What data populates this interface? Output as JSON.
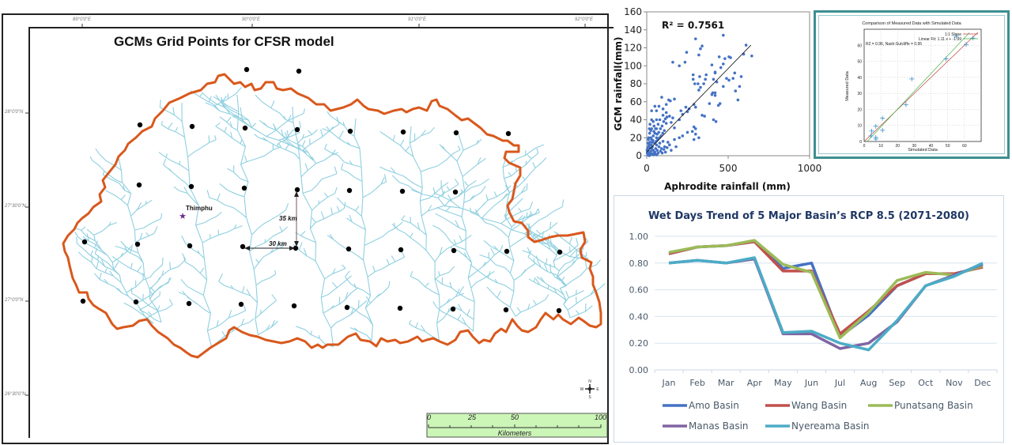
{
  "map": {
    "title": "GCMs Grid Points for  CFSR model",
    "lon_ticks": [
      "89°0'0\"E",
      "90°0'0\"E",
      "91°0'0\"E",
      "92°0'0\"E"
    ],
    "lat_ticks": [
      "28°0'0\"N",
      "27°30'0\"N",
      "27°0'0\"N",
      "26°30'0\"N"
    ],
    "city_label": "Thimphu",
    "distance_vertical": "35 km",
    "distance_horizontal": "30 km",
    "scalebar": {
      "ticks": [
        "0",
        "25",
        "50",
        "100"
      ],
      "unit": "Kilometers"
    },
    "compass": {
      "n": "N",
      "s": "S",
      "e": "E",
      "w": "W"
    },
    "colors": {
      "boundary": "#d9581c",
      "rivers": "#8fd0e0",
      "points": "#000000",
      "city": "#6a2a8a",
      "scalebar_bg": "#ccf5b8"
    }
  },
  "chart_data": [
    {
      "type": "scatter",
      "title": "",
      "annotation": "R² = 0.7561",
      "xlabel": "Aphrodite rainfall (mm)",
      "ylabel": "GCM rainfall(mm)",
      "xlim": [
        0,
        1000
      ],
      "ylim": [
        0,
        160
      ],
      "x_ticks": [
        "0",
        "500",
        "1000"
      ],
      "y_ticks": [
        "0",
        "20",
        "40",
        "60",
        "80",
        "100",
        "120",
        "140",
        "160"
      ],
      "trendline": {
        "slope": 0.186,
        "intercept": 4,
        "x_range": [
          0,
          640
        ]
      },
      "color": "#4472c4",
      "points": [
        [
          470,
          134
        ],
        [
          300,
          130
        ],
        [
          610,
          123
        ],
        [
          340,
          122
        ],
        [
          330,
          119
        ],
        [
          245,
          115
        ],
        [
          320,
          112
        ],
        [
          645,
          111
        ],
        [
          445,
          110
        ],
        [
          505,
          110
        ],
        [
          515,
          109
        ],
        [
          480,
          108
        ],
        [
          160,
          104
        ],
        [
          235,
          104
        ],
        [
          595,
          113
        ],
        [
          400,
          101
        ],
        [
          470,
          102
        ],
        [
          200,
          100
        ],
        [
          455,
          98
        ],
        [
          420,
          93
        ],
        [
          540,
          92
        ],
        [
          420,
          92
        ],
        [
          365,
          90
        ],
        [
          285,
          90
        ],
        [
          285,
          85
        ],
        [
          325,
          88
        ],
        [
          490,
          86
        ],
        [
          580,
          88
        ],
        [
          410,
          85
        ],
        [
          505,
          84
        ],
        [
          530,
          86
        ],
        [
          350,
          80
        ],
        [
          360,
          85
        ],
        [
          430,
          82
        ],
        [
          315,
          80
        ],
        [
          295,
          80
        ],
        [
          570,
          77
        ],
        [
          470,
          77
        ],
        [
          330,
          76
        ],
        [
          545,
          72
        ],
        [
          320,
          73
        ],
        [
          405,
          70
        ],
        [
          420,
          70
        ],
        [
          400,
          68
        ],
        [
          420,
          67
        ],
        [
          560,
          62
        ],
        [
          92,
          65
        ],
        [
          135,
          62
        ],
        [
          145,
          61
        ],
        [
          170,
          63
        ],
        [
          120,
          57
        ],
        [
          290,
          57
        ],
        [
          450,
          58
        ],
        [
          440,
          56
        ],
        [
          300,
          54
        ],
        [
          385,
          58
        ],
        [
          50,
          55
        ],
        [
          75,
          55
        ],
        [
          240,
          54
        ],
        [
          260,
          52
        ],
        [
          100,
          52
        ],
        [
          120,
          48
        ],
        [
          210,
          50
        ],
        [
          250,
          49
        ],
        [
          30,
          50
        ],
        [
          60,
          50
        ],
        [
          340,
          45
        ],
        [
          355,
          44
        ],
        [
          410,
          40
        ],
        [
          425,
          38
        ],
        [
          100,
          45
        ],
        [
          140,
          44
        ],
        [
          160,
          42
        ],
        [
          200,
          40
        ],
        [
          220,
          46
        ],
        [
          60,
          40
        ],
        [
          80,
          40
        ],
        [
          40,
          38
        ],
        [
          20,
          35
        ],
        [
          45,
          33
        ],
        [
          70,
          35
        ],
        [
          120,
          36
        ],
        [
          150,
          37
        ],
        [
          170,
          31
        ],
        [
          30,
          30
        ],
        [
          60,
          30
        ],
        [
          290,
          32
        ],
        [
          300,
          30
        ],
        [
          250,
          26
        ],
        [
          280,
          27
        ],
        [
          300,
          24
        ],
        [
          320,
          20
        ],
        [
          290,
          18
        ],
        [
          200,
          20
        ],
        [
          220,
          22
        ],
        [
          170,
          18
        ],
        [
          130,
          15
        ],
        [
          140,
          12
        ],
        [
          110,
          10
        ],
        [
          90,
          8
        ],
        [
          80,
          14
        ],
        [
          100,
          16
        ],
        [
          60,
          20
        ],
        [
          50,
          25
        ],
        [
          40,
          22
        ],
        [
          30,
          18
        ],
        [
          20,
          15
        ],
        [
          15,
          12
        ],
        [
          10,
          10
        ],
        [
          5,
          8
        ],
        [
          8,
          5
        ],
        [
          12,
          3
        ],
        [
          20,
          2
        ],
        [
          25,
          5
        ],
        [
          30,
          8
        ],
        [
          35,
          10
        ],
        [
          40,
          6
        ],
        [
          45,
          3
        ],
        [
          50,
          4
        ],
        [
          55,
          8
        ],
        [
          60,
          12
        ],
        [
          65,
          6
        ],
        [
          70,
          3
        ],
        [
          75,
          10
        ],
        [
          85,
          5
        ],
        [
          95,
          3
        ],
        [
          105,
          7
        ],
        [
          115,
          4
        ],
        [
          125,
          9
        ],
        [
          150,
          6
        ],
        [
          180,
          10
        ],
        [
          12,
          20
        ],
        [
          18,
          25
        ],
        [
          25,
          28
        ],
        [
          35,
          15
        ],
        [
          8,
          14
        ],
        [
          3,
          3
        ],
        [
          6,
          1
        ],
        [
          15,
          0
        ],
        [
          22,
          1
        ],
        [
          32,
          2
        ],
        [
          42,
          1
        ],
        [
          52,
          2
        ],
        [
          62,
          1
        ],
        [
          2,
          6
        ],
        [
          10,
          18
        ],
        [
          28,
          12
        ],
        [
          38,
          17
        ],
        [
          48,
          14
        ],
        [
          58,
          16
        ],
        [
          68,
          18
        ],
        [
          78,
          20
        ],
        [
          88,
          22
        ],
        [
          98,
          25
        ],
        [
          108,
          28
        ],
        [
          18,
          9
        ],
        [
          26,
          20
        ],
        [
          44,
          27
        ],
        [
          54,
          30
        ],
        [
          64,
          24
        ],
        [
          74,
          26
        ],
        [
          84,
          30
        ],
        [
          94,
          33
        ],
        [
          104,
          38
        ],
        [
          114,
          41
        ],
        [
          124,
          43
        ],
        [
          30,
          40
        ],
        [
          16,
          30
        ]
      ]
    },
    {
      "type": "scatter",
      "title": "Comparison of Measured Data with Simulated Data",
      "xlabel": "Simulated Data",
      "ylabel": "Measured Data",
      "xlim": [
        0,
        70
      ],
      "ylim": [
        0,
        70
      ],
      "x_ticks": [
        "0",
        "10",
        "20",
        "30",
        "40",
        "50",
        "60"
      ],
      "y_ticks": [
        "0",
        "10",
        "20",
        "30",
        "40",
        "50",
        "60"
      ],
      "grid": true,
      "legend": [
        "1:1 Slope",
        "Linear Fit: 1.11 x + -1.99"
      ],
      "annotation": "R2 = 0.96,   Nash-Sutcliffe = 0.95",
      "legend_position": "top-right",
      "series_colors": {
        "points": "#3a8fcc",
        "one_to_one": "#c04040",
        "fit": "#40b040"
      },
      "points": [
        [
          55,
          65.5
        ],
        [
          65,
          64.5
        ],
        [
          61,
          60.5
        ],
        [
          49,
          51.5
        ],
        [
          28.5,
          39
        ],
        [
          25,
          23
        ],
        [
          11,
          14.5
        ],
        [
          7,
          9.5
        ],
        [
          4.5,
          6.5
        ],
        [
          11,
          7
        ],
        [
          4,
          3.5
        ],
        [
          7,
          2.5
        ],
        [
          7,
          1.5
        ]
      ]
    },
    {
      "type": "line",
      "title": "Wet Days Trend of 5 Major Basin’s RCP 8.5 (2071-2080)",
      "xlabel": "",
      "ylabel": "",
      "ylim": [
        0,
        1.0
      ],
      "y_ticks": [
        "0.00",
        "0.20",
        "0.40",
        "0.60",
        "0.80",
        "1.00"
      ],
      "categories": [
        "Jan",
        "Feb",
        "Mar",
        "Apr",
        "May",
        "Jun",
        "Jul",
        "Aug",
        "Sep",
        "Oct",
        "Nov",
        "Dec"
      ],
      "grid": true,
      "legend_position": "bottom",
      "series": [
        {
          "name": "Amo Basin",
          "color": "#4472c4",
          "values": [
            0.87,
            0.92,
            0.93,
            0.96,
            0.76,
            0.8,
            0.25,
            0.41,
            0.63,
            0.72,
            0.72,
            0.77
          ]
        },
        {
          "name": "Wang Basin",
          "color": "#c0504d",
          "values": [
            0.87,
            0.92,
            0.93,
            0.96,
            0.74,
            0.74,
            0.27,
            0.44,
            0.63,
            0.72,
            0.72,
            0.77
          ]
        },
        {
          "name": "Punatsang Basin",
          "color": "#9bbb59",
          "values": [
            0.88,
            0.92,
            0.93,
            0.97,
            0.79,
            0.73,
            0.24,
            0.43,
            0.67,
            0.73,
            0.71,
            0.78
          ]
        },
        {
          "name": "Manas Basin",
          "color": "#8064a2",
          "values": [
            0.8,
            0.82,
            0.8,
            0.83,
            0.27,
            0.27,
            0.16,
            0.2,
            0.36,
            0.63,
            0.71,
            0.79
          ]
        },
        {
          "name": "Nyereama Basin",
          "color": "#4bacc6",
          "values": [
            0.8,
            0.82,
            0.8,
            0.84,
            0.28,
            0.29,
            0.2,
            0.15,
            0.37,
            0.63,
            0.7,
            0.8
          ]
        }
      ]
    }
  ]
}
